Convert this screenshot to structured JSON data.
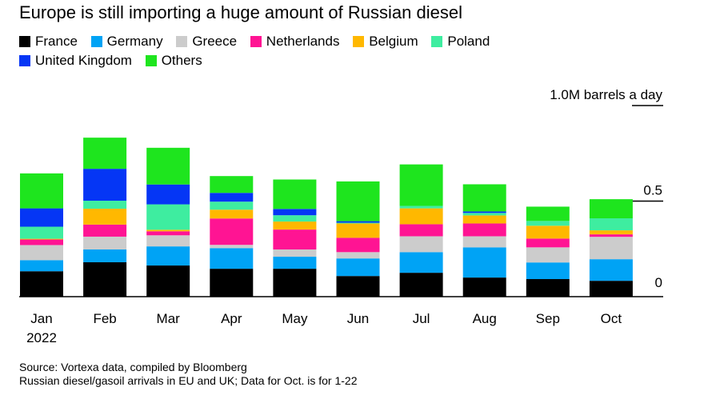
{
  "title": "Europe is still importing a huge amount of Russian diesel",
  "legend": [
    {
      "label": "France",
      "color": "#000000"
    },
    {
      "label": "Germany",
      "color": "#00a3f5"
    },
    {
      "label": "Greece",
      "color": "#cccccc"
    },
    {
      "label": "Netherlands",
      "color": "#ff1493"
    },
    {
      "label": "Belgium",
      "color": "#ffb800"
    },
    {
      "label": "Poland",
      "color": "#3eeda0"
    },
    {
      "label": "United Kingdom",
      "color": "#0536f5"
    },
    {
      "label": "Others",
      "color": "#1ee51e"
    }
  ],
  "footnotes": {
    "source": "Source: Vortexa data, compiled by Bloomberg",
    "note": "Russian diesel/gasoil arrivals in EU and UK; Data for Oct. is for 1-22"
  },
  "chart_data": {
    "type": "bar",
    "stacked": true,
    "title": "Europe is still importing a huge amount of Russian diesel",
    "units_label": "1.0M barrels a day",
    "categories": [
      "Jan",
      "Feb",
      "Mar",
      "Apr",
      "May",
      "Jun",
      "Jul",
      "Aug",
      "Sep",
      "Oct"
    ],
    "year_label": "2022",
    "y_ticks": [
      {
        "value": 0,
        "label": "0"
      },
      {
        "value": 0.5,
        "label": "0.5"
      },
      {
        "value": 1.0,
        "label": "1.0M barrels a day"
      }
    ],
    "ylim": [
      0,
      1.0
    ],
    "series": [
      {
        "name": "France",
        "color": "#000000",
        "values": [
          0.133,
          0.18,
          0.163,
          0.146,
          0.146,
          0.108,
          0.125,
          0.1,
          0.092,
          0.083
        ]
      },
      {
        "name": "Germany",
        "color": "#00a3f5",
        "values": [
          0.058,
          0.067,
          0.1,
          0.108,
          0.063,
          0.092,
          0.108,
          0.158,
          0.087,
          0.113
        ]
      },
      {
        "name": "Greece",
        "color": "#cccccc",
        "values": [
          0.079,
          0.067,
          0.058,
          0.017,
          0.038,
          0.033,
          0.083,
          0.058,
          0.079,
          0.117
        ]
      },
      {
        "name": "Netherlands",
        "color": "#ff1493",
        "values": [
          0.029,
          0.063,
          0.021,
          0.138,
          0.104,
          0.075,
          0.063,
          0.067,
          0.046,
          0.013
        ]
      },
      {
        "name": "Belgium",
        "color": "#ffb800",
        "values": [
          0.004,
          0.083,
          0.008,
          0.046,
          0.042,
          0.075,
          0.083,
          0.042,
          0.067,
          0.021
        ]
      },
      {
        "name": "Poland",
        "color": "#3eeda0",
        "values": [
          0.063,
          0.042,
          0.133,
          0.042,
          0.033,
          0.004,
          0.013,
          0.013,
          0.025,
          0.063
        ]
      },
      {
        "name": "United Kingdom",
        "color": "#0536f5",
        "values": [
          0.096,
          0.167,
          0.104,
          0.046,
          0.033,
          0.008,
          0.0,
          0.008,
          0.0,
          0.0
        ]
      },
      {
        "name": "Others",
        "color": "#1ee51e",
        "values": [
          0.183,
          0.163,
          0.192,
          0.088,
          0.154,
          0.208,
          0.217,
          0.142,
          0.075,
          0.1
        ]
      }
    ]
  }
}
